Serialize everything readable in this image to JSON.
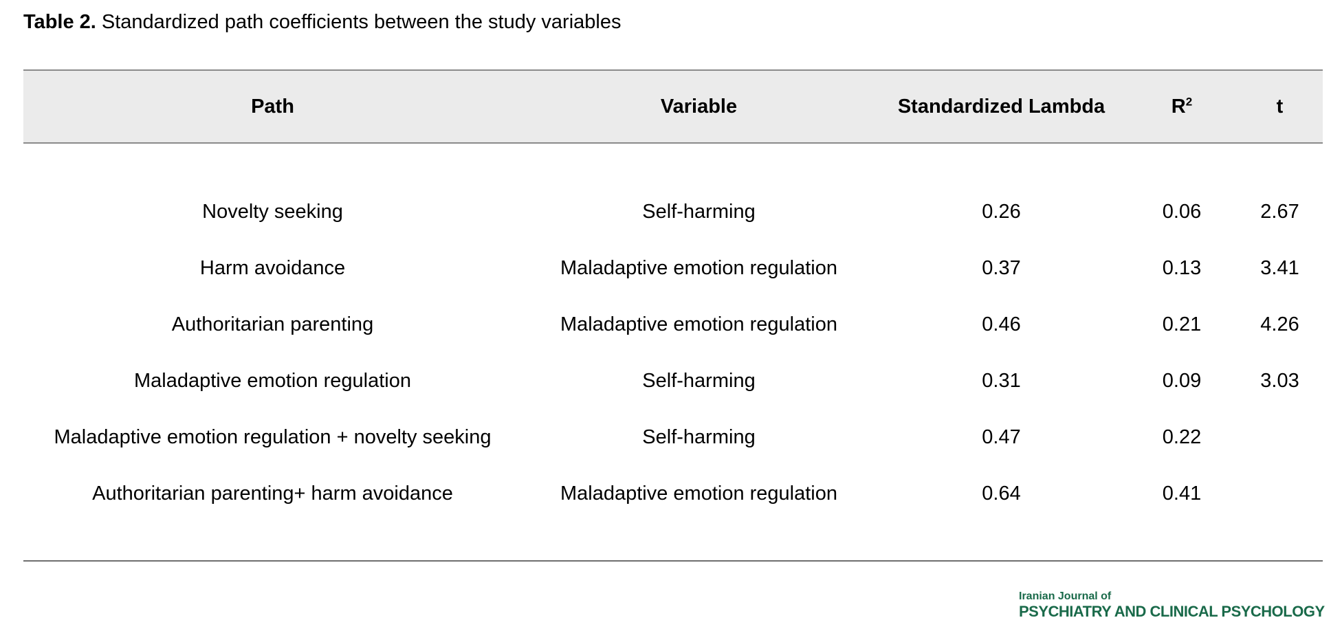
{
  "caption": {
    "label": "Table 2.",
    "text": " Standardized path coefficients between the study variables"
  },
  "table": {
    "headers": {
      "path": "Path",
      "variable": "Variable",
      "lambda": "Standardized Lambda",
      "r2_base": "R",
      "r2_sup": "2",
      "t": "t"
    },
    "rows": [
      {
        "path": "Novelty seeking",
        "variable": "Self-harming",
        "lambda": "0.26",
        "r2": "0.06",
        "t": "2.67"
      },
      {
        "path": "Harm avoidance",
        "variable": "Maladaptive emotion regulation",
        "lambda": "0.37",
        "r2": "0.13",
        "t": "3.41"
      },
      {
        "path": "Authoritarian parenting",
        "variable": "Maladaptive emotion regulation",
        "lambda": "0.46",
        "r2": "0.21",
        "t": "4.26"
      },
      {
        "path": "Maladaptive emotion regulation",
        "variable": "Self-harming",
        "lambda": "0.31",
        "r2": "0.09",
        "t": "3.03"
      },
      {
        "path": "Maladaptive emotion regulation + novelty seeking",
        "variable": "Self-harming",
        "lambda": "0.47",
        "r2": "0.22",
        "t": ""
      },
      {
        "path": "Authoritarian parenting+ harm avoidance",
        "variable": "Maladaptive emotion regulation",
        "lambda": "0.64",
        "r2": "0.41",
        "t": ""
      }
    ]
  },
  "logo": {
    "line1": "Iranian Journal of",
    "line2": "PSYCHIATRY AND CLINICAL PSYCHOLOGY",
    "color": "#1a6a4a"
  },
  "colors": {
    "header_background": "#ebebeb",
    "rule": "#8a8a8a"
  }
}
